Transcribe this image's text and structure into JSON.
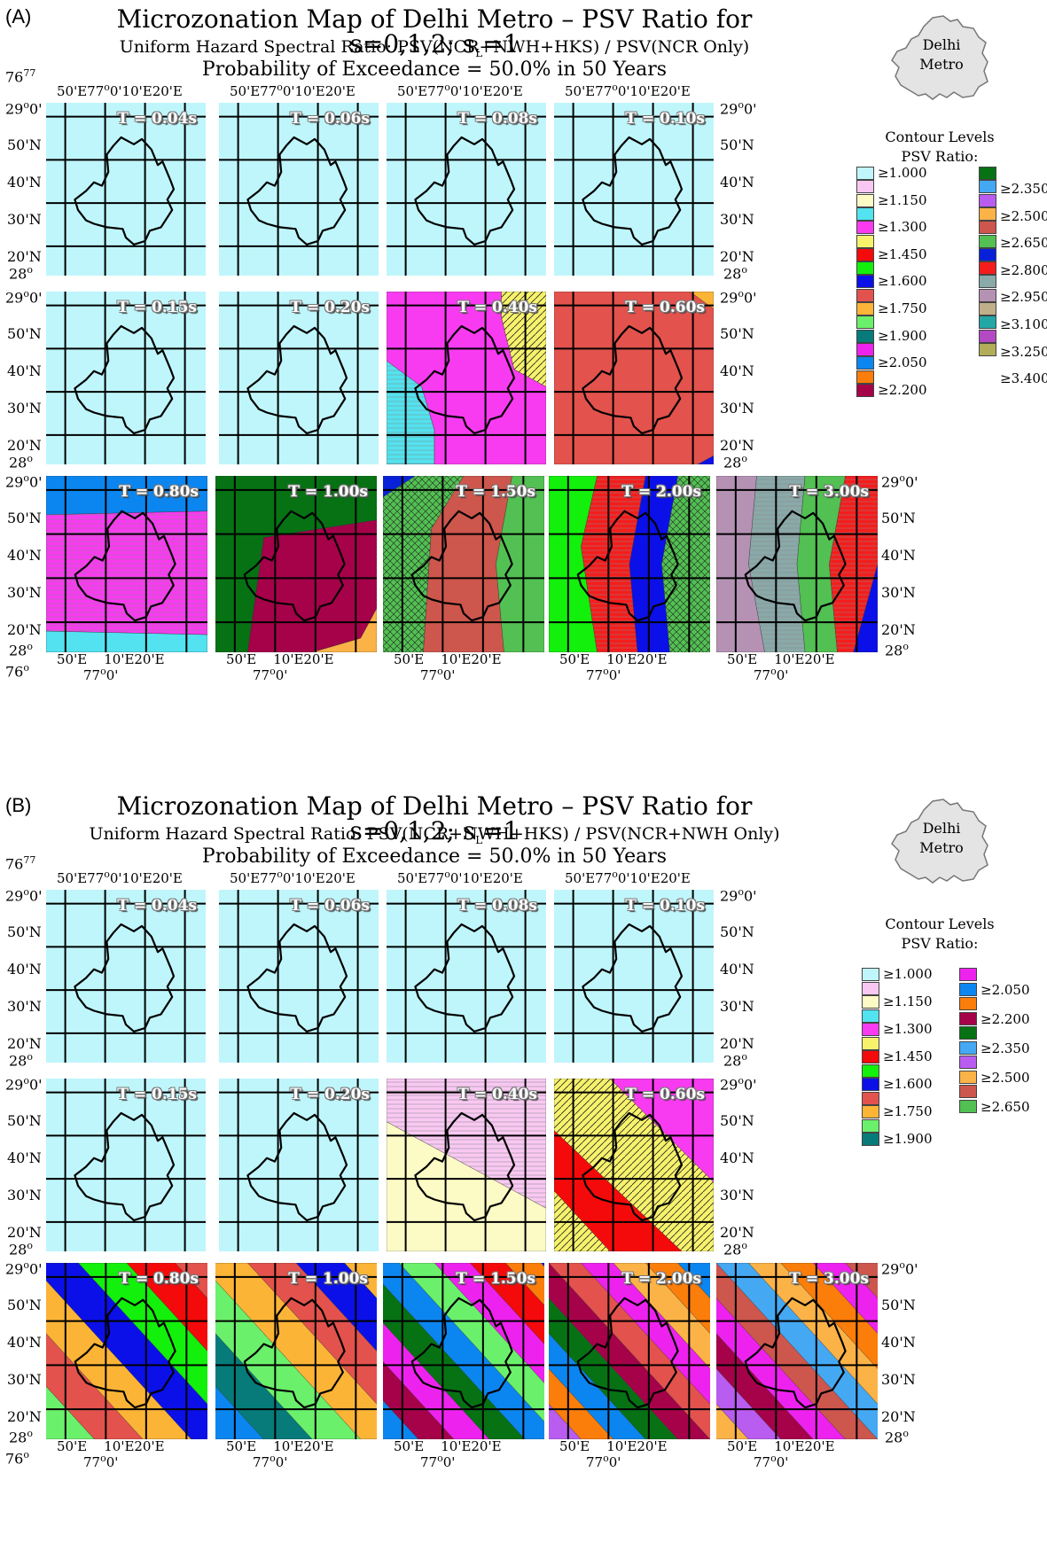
{
  "palette": {
    "c1000": "#bff6fb",
    "c1150p": "#f9c8f2",
    "c1150": "#fdfbc5",
    "c1300c": "#53e2ef",
    "c1300": "#f83bf0",
    "c1300y": "#f7f26c",
    "c1450": "#f40a0a",
    "c1600g": "#12f00b",
    "c1600": "#0b10e8",
    "c1750r": "#e3524c",
    "c1750": "#fcb437",
    "c1900x": "#6bf06b",
    "c1900": "#067b7a",
    "c2050m": "#ee22ee",
    "c2050": "#0b86f0",
    "c2200o": "#fb7d0a",
    "c2200": "#a5024a",
    "c2350g": "#067214",
    "c2350": "#45a8f3",
    "c2350v": "#b95cf0",
    "c2500": "#fbb347",
    "c2650": "#cd564d",
    "c2650x": "#52c052",
    "c2800": "#0821d8",
    "c2950": "#f41d1d",
    "c3100": "#8aa9a9",
    "c3100v": "#b592b4",
    "c3250": "#bfb08a",
    "c3250t": "#23a6a6",
    "c3250v": "#b44ac3",
    "c3400": "#b1ad58"
  },
  "sections": [
    {
      "label": "(A)",
      "title": "Microzonation Map of Delhi Metro – PSV Ratio for s=0,1,2; s",
      "title_sub": "L",
      "title_tail": "=1",
      "subtitle": "Uniform Hazard Spectral Ratio: PSV(NCR+NWH+HKS) / PSV(NCR Only)",
      "probability": "Probability of Exceedance = 50.0% in 50 Years",
      "inset_label": [
        "Delhi",
        "Metro"
      ],
      "legend_title": [
        "Contour Levels",
        "PSV Ratio:"
      ],
      "legend_col1": [
        "≥1.000",
        "≥1.150",
        "≥1.300",
        "≥1.450",
        "≥1.600",
        "≥1.750",
        "≥1.900",
        "≥2.050",
        "≥2.200"
      ],
      "legend_col2": [
        "≥2.350",
        "≥2.500",
        "≥2.650",
        "≥2.800",
        "≥2.950",
        "≥3.100",
        "≥3.250",
        "≥3.400"
      ],
      "maps": [
        {
          "period": "T = 0.04s"
        },
        {
          "period": "T = 0.06s"
        },
        {
          "period": "T = 0.08s"
        },
        {
          "period": "T = 0.10s"
        },
        {
          "period": "T = 0.15s"
        },
        {
          "period": "T = 0.20s"
        },
        {
          "period": "T = 0.40s"
        },
        {
          "period": "T = 0.60s"
        },
        {
          "period": "T = 0.80s"
        },
        {
          "period": "T = 1.00s"
        },
        {
          "period": "T = 1.50s"
        },
        {
          "period": "T = 2.00s"
        },
        {
          "period": "T = 3.00s"
        }
      ]
    },
    {
      "label": "(B)",
      "title": "Microzonation Map of Delhi Metro – PSV Ratio for s=0,1,2; s",
      "title_sub": "L",
      "title_tail": "=1",
      "subtitle": "Uniform Hazard Spectral Ratio: PSV(NCR+NWH+HKS) / PSV(NCR+NWH Only)",
      "probability": "Probability of Exceedance = 50.0% in 50 Years",
      "inset_label": [
        "Delhi",
        "Metro"
      ],
      "legend_title": [
        "Contour Levels",
        "PSV Ratio:"
      ],
      "legend_col1": [
        "≥1.000",
        "≥1.150",
        "≥1.300",
        "≥1.450",
        "≥1.600",
        "≥1.750",
        "≥1.900"
      ],
      "legend_col2": [
        "≥2.050",
        "≥2.200",
        "≥2.350",
        "≥2.500",
        "≥2.650"
      ],
      "maps": [
        {
          "period": "T = 0.04s"
        },
        {
          "period": "T = 0.06s"
        },
        {
          "period": "T = 0.08s"
        },
        {
          "period": "T = 0.10s"
        },
        {
          "period": "T = 0.15s"
        },
        {
          "period": "T = 0.20s"
        },
        {
          "period": "T = 0.40s"
        },
        {
          "period": "T = 0.60s"
        },
        {
          "period": "T = 0.80s"
        },
        {
          "period": "T = 1.00s"
        },
        {
          "period": "T = 1.50s"
        },
        {
          "period": "T = 2.00s"
        },
        {
          "period": "T = 3.00s"
        }
      ]
    }
  ],
  "ticks": {
    "lon_top": [
      "50'E",
      "77",
      "o",
      "0",
      "'",
      "10'E",
      "20'E"
    ],
    "lon_corner": "76",
    "lat": [
      "29",
      "o",
      "0'",
      "50'N",
      "40'N",
      "30'N",
      "20'N",
      "28",
      "o"
    ],
    "lon_bottom": [
      "50'E",
      "10'E20'E",
      "77",
      "o",
      "0",
      "'"
    ]
  }
}
